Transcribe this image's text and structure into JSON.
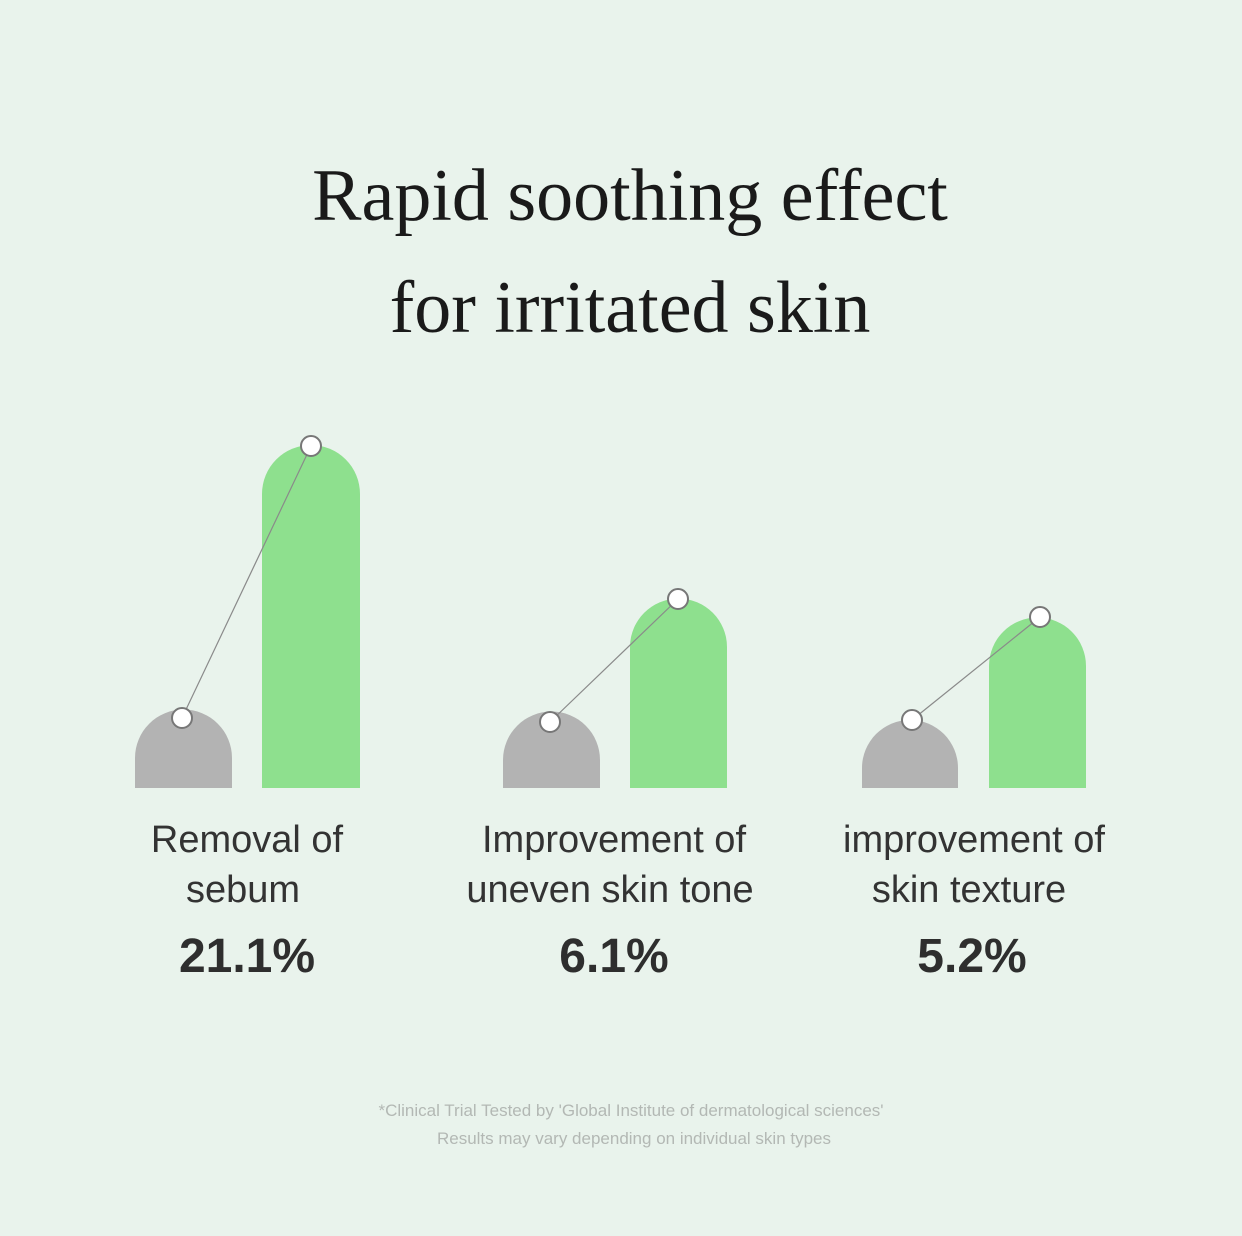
{
  "title": {
    "lines": [
      "Rapid soothing effect",
      "for irritated skin"
    ]
  },
  "items": [
    {
      "label_lines": [
        "Removal of",
        "sebum"
      ],
      "value": "21.1%"
    },
    {
      "label_lines": [
        "Improvement of",
        "uneven skin tone"
      ],
      "value": "6.1%"
    },
    {
      "label_lines": [
        "improvement of",
        "skin texture"
      ],
      "value": "5.2%"
    }
  ],
  "footnote": {
    "lines": [
      "*Clinical Trial Tested by 'Global Institute of dermatological sciences'",
      "Results may vary depending on individual skin types"
    ]
  }
}
